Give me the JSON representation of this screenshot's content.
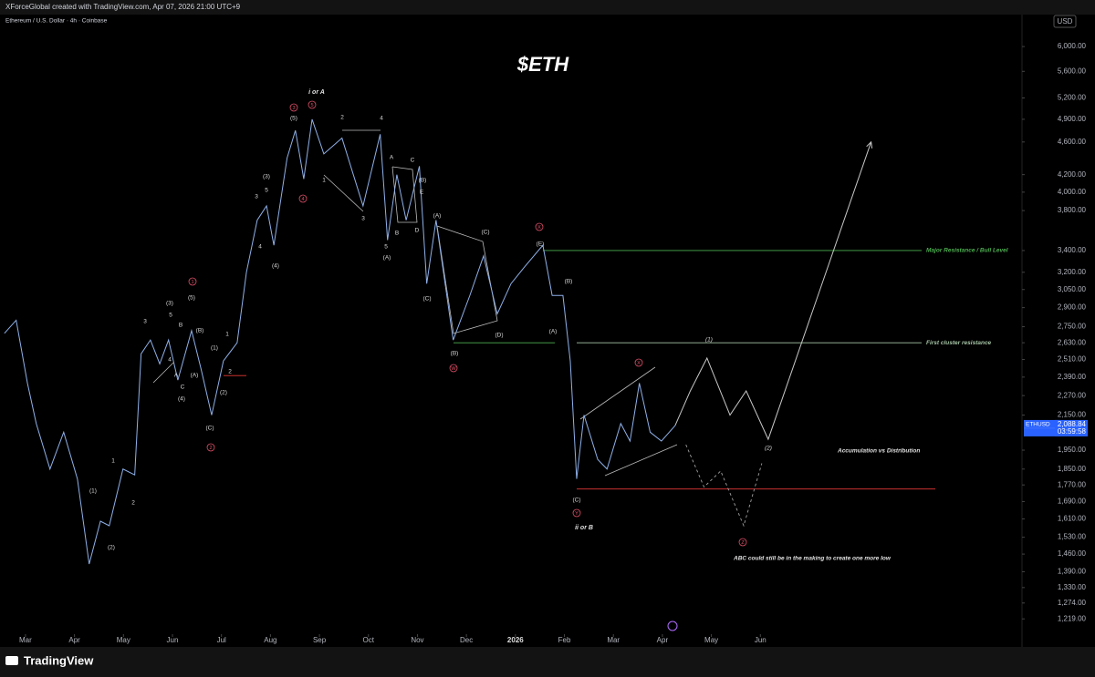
{
  "header": "XForceGlobal created with TradingView.com, Apr 07, 2026 21:00 UTC+9",
  "footer": "TradingView",
  "chart_data": {
    "type": "line",
    "title": "$ETH",
    "symbol": "Ethereum / U.S. Dollar · 4h · Coinbase",
    "currency": "USD",
    "log_scale": true,
    "color": "#8fb0e8",
    "x": [
      -0.43,
      -0.19,
      0.04,
      0.22,
      0.5,
      0.78,
      1.06,
      1.3,
      1.53,
      1.71,
      1.99,
      2.23,
      2.36,
      2.55,
      2.74,
      2.92,
      3.11,
      3.39,
      3.58,
      3.8,
      4.04,
      4.32,
      4.51,
      4.73,
      4.92,
      5.07,
      5.34,
      5.51,
      5.68,
      5.85,
      6.09,
      6.46,
      6.89,
      7.24,
      7.39,
      7.58,
      7.77,
      8.04,
      8.19,
      8.38,
      8.73,
      9.07,
      9.35,
      9.63,
      9.91,
      10.19,
      10.56,
      10.75,
      10.97,
      11.12,
      11.25,
      11.4,
      11.68,
      11.87,
      12.15,
      12.34,
      12.53,
      12.75,
      12.98,
      13.26
    ],
    "values": [
      2700,
      2800,
      2350,
      2100,
      1850,
      2050,
      1800,
      1420,
      1600,
      1580,
      1850,
      1820,
      2550,
      2650,
      2480,
      2650,
      2370,
      2720,
      2450,
      2150,
      2500,
      2630,
      3200,
      3700,
      3850,
      3450,
      4400,
      4750,
      4150,
      4900,
      4450,
      4650,
      3850,
      4700,
      3500,
      4200,
      3700,
      4300,
      3100,
      3700,
      2650,
      3000,
      3350,
      2850,
      3100,
      3250,
      3450,
      3000,
      3000,
      2500,
      1800,
      2150,
      1900,
      1850,
      2100,
      2000,
      2350,
      2050,
      2000,
      2088
    ],
    "projection": {
      "color": "#c8c8c8",
      "x": [
        13.26,
        13.57,
        13.91,
        14.38,
        14.71,
        15.16,
        17.26
      ],
      "values": [
        2088,
        2300,
        2520,
        2150,
        2300,
        2010,
        4600
      ]
    },
    "alternate": {
      "color": "#a0a0a0",
      "x": [
        13.48,
        13.85,
        14.19,
        14.66,
        15.03
      ],
      "values": [
        1980,
        1760,
        1840,
        1580,
        1880
      ]
    },
    "last_price": {
      "value": 2088.84,
      "label": "2,088.84"
    },
    "countdown": "03:59:58",
    "symbol_tag": "ETHUSD",
    "xlim": [
      -0.52,
      20.34
    ],
    "ylim": [
      1180,
      6330
    ],
    "xticks": [
      {
        "value": 0,
        "label": "Mar"
      },
      {
        "value": 1,
        "label": "Apr"
      },
      {
        "value": 2,
        "label": "May"
      },
      {
        "value": 3,
        "label": "Jun"
      },
      {
        "value": 4,
        "label": "Jul"
      },
      {
        "value": 5,
        "label": "Aug"
      },
      {
        "value": 6,
        "label": "Sep"
      },
      {
        "value": 7,
        "label": "Oct"
      },
      {
        "value": 8,
        "label": "Nov"
      },
      {
        "value": 9,
        "label": "Dec"
      },
      {
        "value": 10,
        "label": "2026"
      },
      {
        "value": 11,
        "label": "Feb"
      },
      {
        "value": 12,
        "label": "Mar"
      },
      {
        "value": 13,
        "label": "Apr"
      },
      {
        "value": 14,
        "label": "May"
      },
      {
        "value": 15,
        "label": "Jun"
      }
    ],
    "yticks": [
      {
        "value": 6000,
        "label": "6,000.00"
      },
      {
        "value": 5600,
        "label": "5,600.00"
      },
      {
        "value": 5200,
        "label": "5,200.00"
      },
      {
        "value": 4900,
        "label": "4,900.00"
      },
      {
        "value": 4600,
        "label": "4,600.00"
      },
      {
        "value": 4200,
        "label": "4,200.00"
      },
      {
        "value": 4000,
        "label": "4,000.00"
      },
      {
        "value": 3800,
        "label": "3,800.00"
      },
      {
        "value": 3400,
        "label": "3,400.00"
      },
      {
        "value": 3200,
        "label": "3,200.00"
      },
      {
        "value": 3050,
        "label": "3,050.00"
      },
      {
        "value": 2900,
        "label": "2,900.00"
      },
      {
        "value": 2750,
        "label": "2,750.00"
      },
      {
        "value": 2630,
        "label": "2,630.00"
      },
      {
        "value": 2510,
        "label": "2,510.00"
      },
      {
        "value": 2390,
        "label": "2,390.00"
      },
      {
        "value": 2270,
        "label": "2,270.00"
      },
      {
        "value": 2150,
        "label": "2,150.00"
      },
      {
        "value": 1950,
        "label": "1,950.00"
      },
      {
        "value": 1850,
        "label": "1,850.00"
      },
      {
        "value": 1770,
        "label": "1,770.00"
      },
      {
        "value": 1690,
        "label": "1,690.00"
      },
      {
        "value": 1610,
        "label": "1,610.00"
      },
      {
        "value": 1530,
        "label": "1,530.00"
      },
      {
        "value": 1460,
        "label": "1,460.00"
      },
      {
        "value": 1390,
        "label": "1,390.00"
      },
      {
        "value": 1330,
        "label": "1,330.00"
      },
      {
        "value": 1274,
        "label": "1,274.00"
      },
      {
        "value": 1219,
        "label": "1,219.00"
      }
    ],
    "levels": [
      {
        "label": "Major Resistance / Bull Level",
        "value": 3400,
        "color": "#4caf50"
      },
      {
        "label": "First cluster resistance",
        "value": 2630,
        "color": "#a5c4a5"
      },
      {
        "value": 2630,
        "color": "#4caf50"
      },
      {
        "value": 1750,
        "color": "#e53935"
      },
      {
        "value": 2400,
        "color": "#e53935"
      }
    ],
    "wave_labels": [
      "(5)",
      "2",
      "4",
      "1",
      "3",
      "A",
      "C",
      "(B)",
      "E",
      "B",
      "D",
      "5",
      "(A)",
      "(A)",
      "(C)",
      "(D)",
      "(B)",
      "(C)",
      "(E)",
      "(B)",
      "(A)",
      "(C)",
      "(1)",
      "(2)",
      "(3)",
      "3",
      "5",
      "4",
      "(4)",
      "(5)",
      "(3)",
      "5",
      "3",
      "B",
      "(B)",
      "4",
      "A",
      "(A)",
      "C",
      "(4)",
      "1",
      "(1)",
      "2",
      "(2)",
      "(C)",
      "1",
      "2",
      "(1)",
      "(2)"
    ],
    "circled_labels": [
      "3",
      "5",
      "4",
      "1",
      "2",
      "W",
      "X",
      "X",
      "Y",
      "Z"
    ],
    "degree_labels": [
      "i or A",
      "ii or B"
    ],
    "notes": [
      "Accumulation vs Distribution",
      "ABC could still be in the making to create one more low"
    ]
  }
}
